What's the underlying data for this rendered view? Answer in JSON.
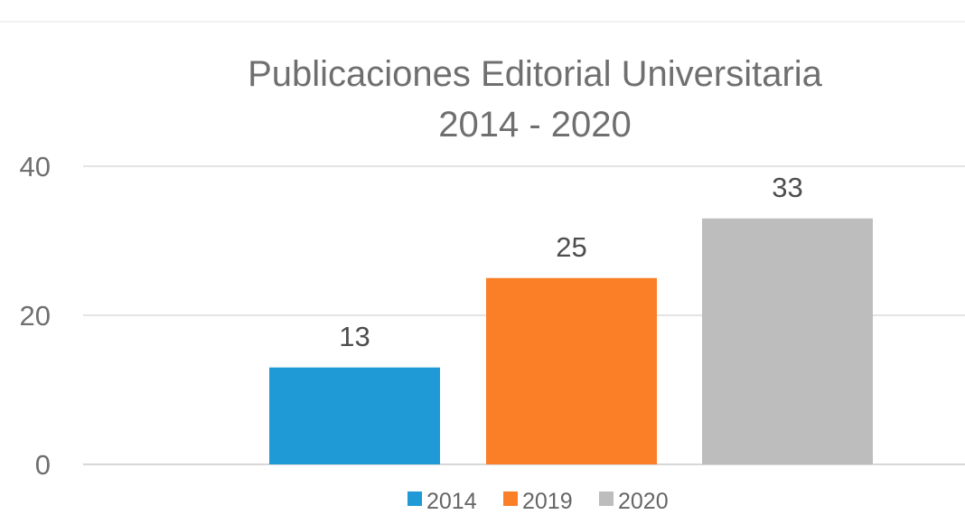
{
  "chart_data": {
    "type": "bar",
    "title": "Publicaciones Editorial Universitaria",
    "subtitle": "2014 - 2020",
    "categories": [
      "2014",
      "2019",
      "2020"
    ],
    "values": [
      13,
      25,
      33
    ],
    "ylim": [
      0,
      40
    ],
    "yticks": [
      0,
      20,
      40
    ],
    "grid": true,
    "legend": "bottom",
    "colors": [
      "#1f9ad6",
      "#fb7f27",
      "#bdbdbd"
    ]
  }
}
